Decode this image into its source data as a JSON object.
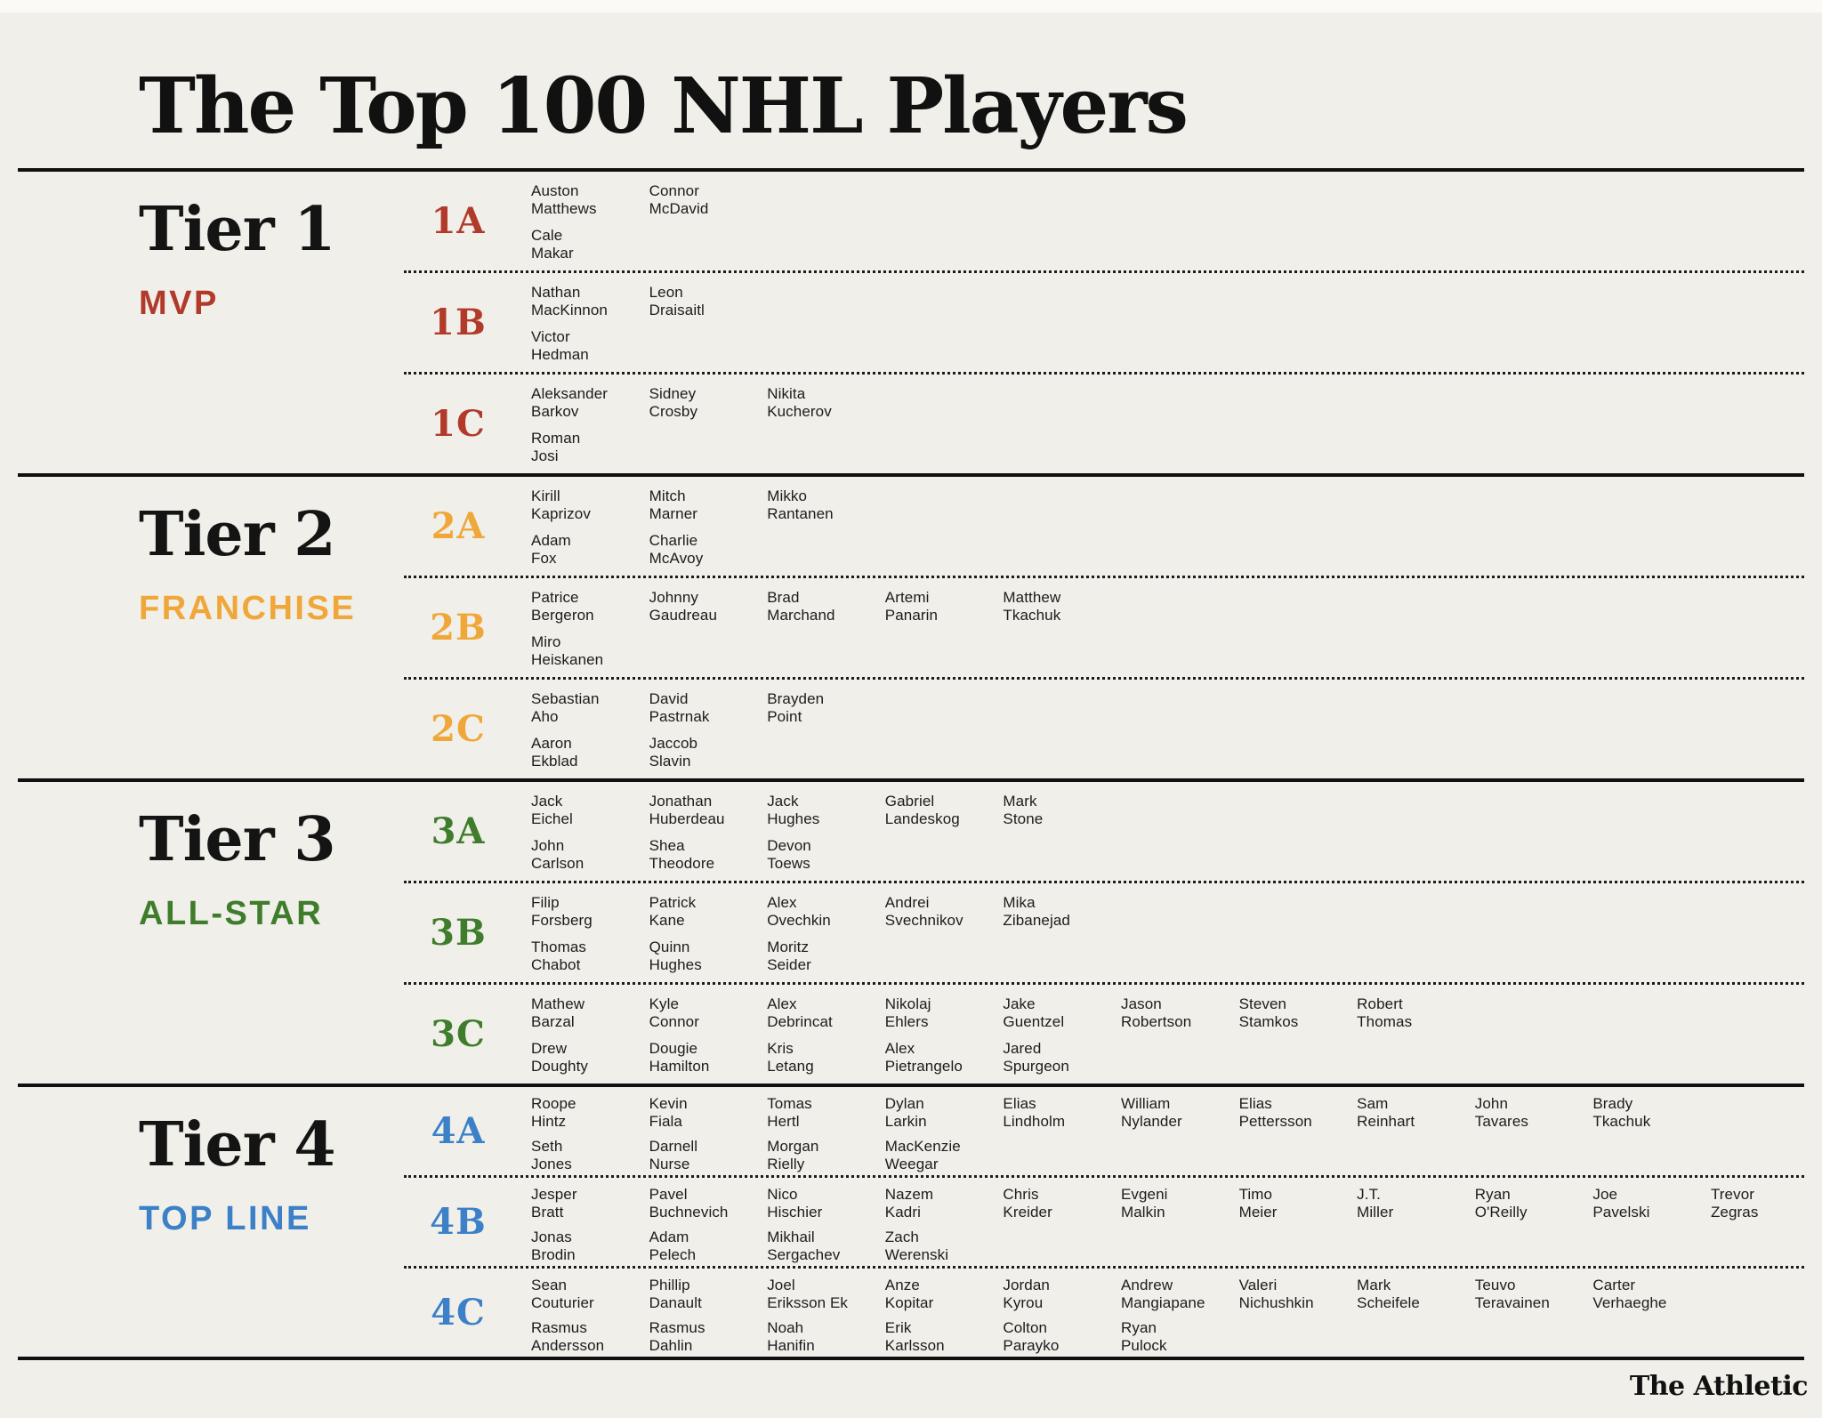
{
  "footer_brand": "The Athletic",
  "colors": {
    "background": "#f0efe9",
    "ink": "#161616",
    "tier1_red": "#b23a2b",
    "tier2_orange": "#f0a73a",
    "tier3_green": "#3f7d2c",
    "tier4_blue": "#3c80c8"
  },
  "chart_data": {
    "type": "table",
    "title": "The Top 100 NHL Players",
    "tiers": [
      {
        "tier": "Tier 1",
        "label": "MVP",
        "color": "#b23a2b",
        "subtiers": [
          {
            "code": "1A",
            "players_row1": [
              "Auston Matthews",
              "Connor McDavid"
            ],
            "players_row2": [
              "Cale Makar"
            ]
          },
          {
            "code": "1B",
            "players_row1": [
              "Nathan MacKinnon",
              "Leon Draisaitl"
            ],
            "players_row2": [
              "Victor Hedman"
            ]
          },
          {
            "code": "1C",
            "players_row1": [
              "Aleksander Barkov",
              "Sidney Crosby",
              "Nikita Kucherov"
            ],
            "players_row2": [
              "Roman Josi"
            ]
          }
        ]
      },
      {
        "tier": "Tier 2",
        "label": "FRANCHISE",
        "color": "#f0a73a",
        "subtiers": [
          {
            "code": "2A",
            "players_row1": [
              "Kirill Kaprizov",
              "Mitch Marner",
              "Mikko Rantanen"
            ],
            "players_row2": [
              "Adam Fox",
              "Charlie McAvoy"
            ]
          },
          {
            "code": "2B",
            "players_row1": [
              "Patrice Bergeron",
              "Johnny Gaudreau",
              "Brad Marchand",
              "Artemi Panarin",
              "Matthew Tkachuk"
            ],
            "players_row2": [
              "Miro Heiskanen"
            ]
          },
          {
            "code": "2C",
            "players_row1": [
              "Sebastian Aho",
              "David Pastrnak",
              "Brayden Point"
            ],
            "players_row2": [
              "Aaron Ekblad",
              "Jaccob Slavin"
            ]
          }
        ]
      },
      {
        "tier": "Tier 3",
        "label": "ALL-STAR",
        "color": "#3f7d2c",
        "subtiers": [
          {
            "code": "3A",
            "players_row1": [
              "Jack Eichel",
              "Jonathan Huberdeau",
              "Jack Hughes",
              "Gabriel Landeskog",
              "Mark Stone"
            ],
            "players_row2": [
              "John Carlson",
              "Shea Theodore",
              "Devon Toews"
            ]
          },
          {
            "code": "3B",
            "players_row1": [
              "Filip Forsberg",
              "Patrick Kane",
              "Alex Ovechkin",
              "Andrei Svechnikov",
              "Mika Zibanejad"
            ],
            "players_row2": [
              "Thomas Chabot",
              "Quinn Hughes",
              "Moritz Seider"
            ]
          },
          {
            "code": "3C",
            "players_row1": [
              "Mathew Barzal",
              "Kyle Connor",
              "Alex Debrincat",
              "Nikolaj Ehlers",
              "Jake Guentzel",
              "Jason Robertson",
              "Steven Stamkos",
              "Robert Thomas"
            ],
            "players_row2": [
              "Drew Doughty",
              "Dougie Hamilton",
              "Kris Letang",
              "Alex Pietrangelo",
              "Jared Spurgeon"
            ]
          }
        ]
      },
      {
        "tier": "Tier 4",
        "label": "TOP LINE",
        "color": "#3c80c8",
        "subtiers": [
          {
            "code": "4A",
            "players_row1": [
              "Roope Hintz",
              "Kevin Fiala",
              "Tomas Hertl",
              "Dylan Larkin",
              "Elias Lindholm",
              "William Nylander",
              "Elias Pettersson",
              "Sam Reinhart",
              "John Tavares",
              "Brady Tkachuk"
            ],
            "players_row2": [
              "Seth Jones",
              "Darnell Nurse",
              "Morgan Rielly",
              "MacKenzie Weegar"
            ]
          },
          {
            "code": "4B",
            "players_row1": [
              "Jesper Bratt",
              "Pavel Buchnevich",
              "Nico Hischier",
              "Nazem Kadri",
              "Chris Kreider",
              "Evgeni Malkin",
              "Timo Meier",
              "J.T. Miller",
              "Ryan O'Reilly",
              "Joe Pavelski",
              "Trevor Zegras"
            ],
            "players_row2": [
              "Jonas Brodin",
              "Adam Pelech",
              "Mikhail Sergachev",
              "Zach Werenski"
            ]
          },
          {
            "code": "4C",
            "players_row1": [
              "Sean Couturier",
              "Phillip Danault",
              "Joel Eriksson Ek",
              "Anze Kopitar",
              "Jordan Kyrou",
              "Andrew Mangiapane",
              "Valeri Nichushkin",
              "Mark Scheifele",
              "Teuvo Teravainen",
              "Carter Verhaeghe"
            ],
            "players_row2": [
              "Rasmus Andersson",
              "Rasmus Dahlin",
              "Noah Hanifin",
              "Erik Karlsson",
              "Colton Parayko",
              "Ryan Pulock"
            ]
          }
        ]
      }
    ],
    "source": "The Athletic"
  }
}
